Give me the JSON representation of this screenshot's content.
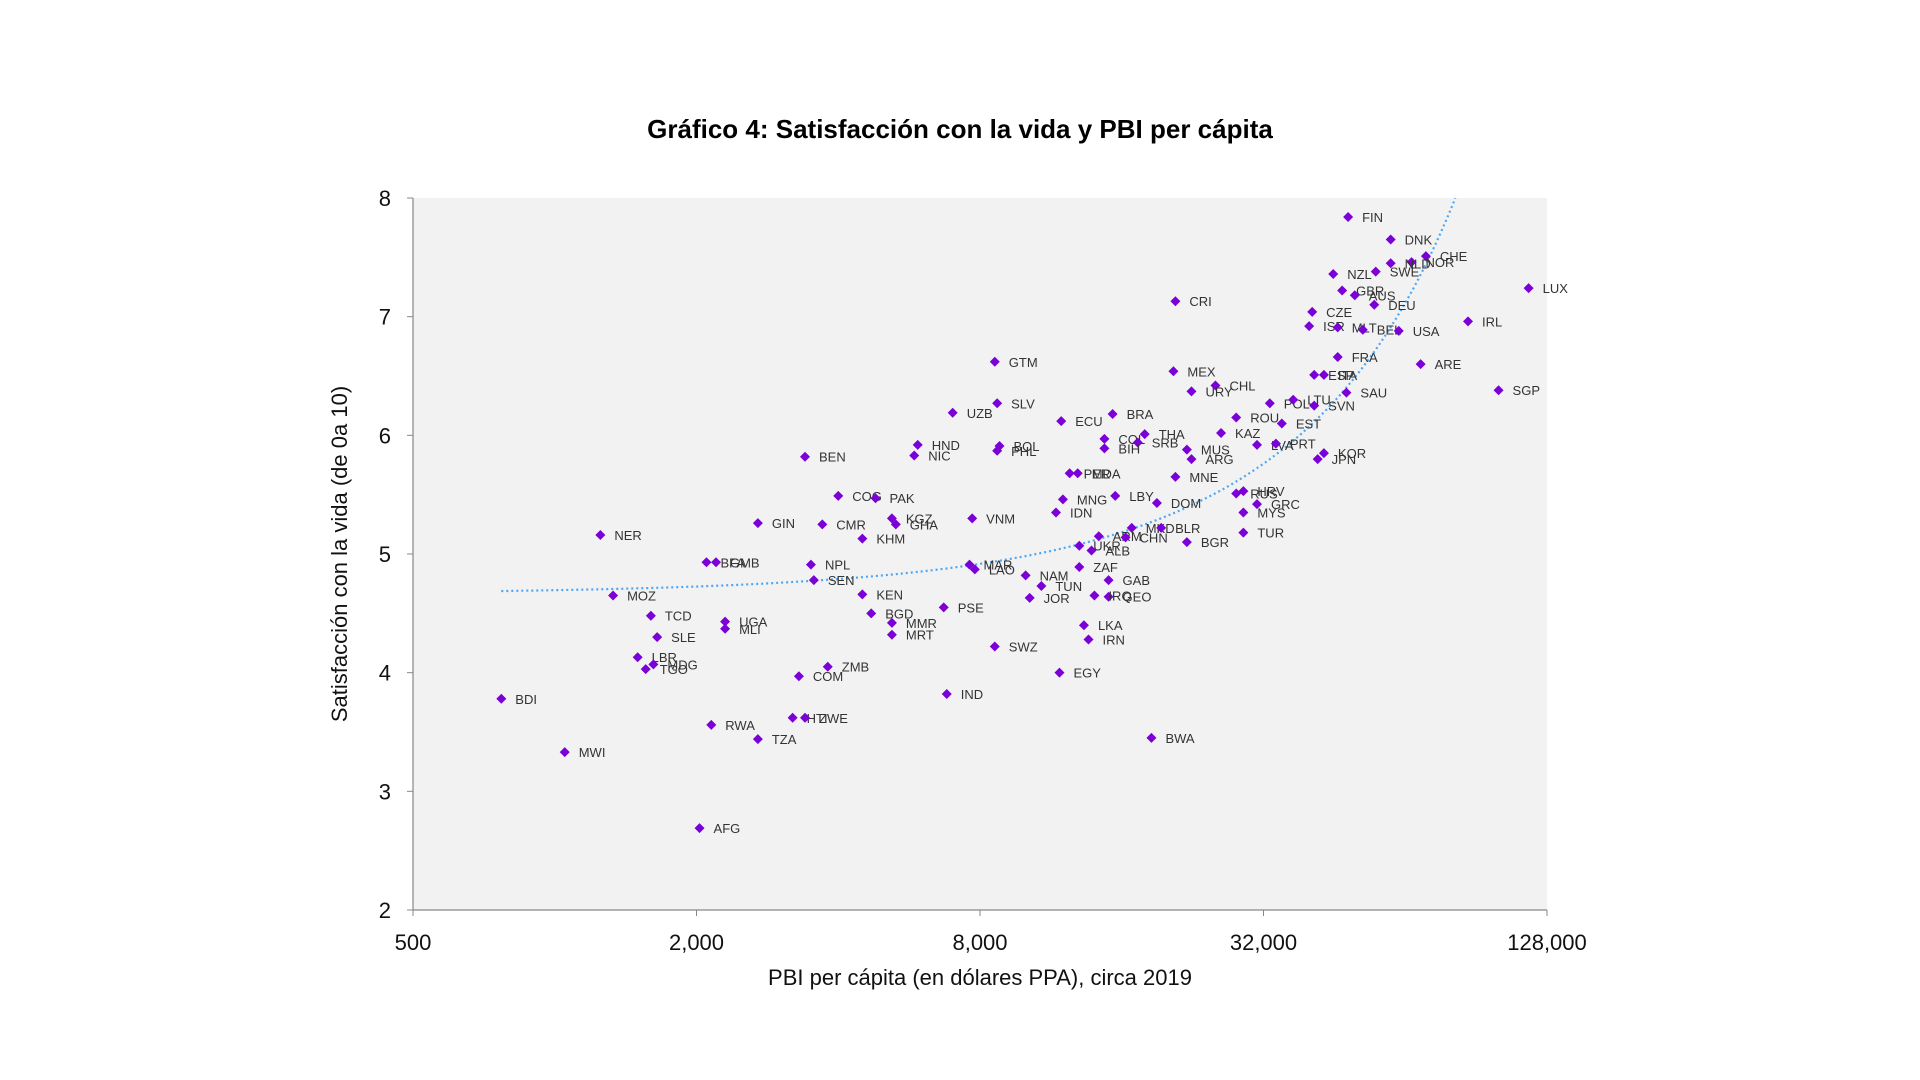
{
  "chart_data": {
    "type": "scatter",
    "title": "Gráfico 4: Satisfacción con la vida y PBI per cápita",
    "xlabel": "PBI per cápita (en dólares PPA), circa 2019",
    "ylabel": "Satisfacción con la vida (de 0a 10)",
    "x_scale": "log2",
    "xlim": [
      500,
      128000
    ],
    "ylim": [
      2,
      8
    ],
    "x_ticks": [
      500,
      2000,
      8000,
      32000,
      128000
    ],
    "x_tick_labels": [
      "500",
      "2,000",
      "8,000",
      "32,000",
      "128,000"
    ],
    "y_ticks": [
      2,
      3,
      4,
      5,
      6,
      7,
      8
    ],
    "y_tick_labels": [
      "2",
      "3",
      "4",
      "5",
      "6",
      "7",
      "8"
    ],
    "grid": false,
    "colors": {
      "points": "#7B00D8",
      "trend": "#4DA6F5",
      "plot_bg": "#F2F2F2"
    },
    "trendline": {
      "type": "exponential",
      "style": "dotted"
    },
    "series": [
      {
        "points": [
          {
            "label": "FIN",
            "x": 48400,
            "y": 7.84
          },
          {
            "label": "DNK",
            "x": 59600,
            "y": 7.65
          },
          {
            "label": "CHE",
            "x": 70800,
            "y": 7.51
          },
          {
            "label": "NOR",
            "x": 66000,
            "y": 7.46
          },
          {
            "label": "NLD",
            "x": 59600,
            "y": 7.45
          },
          {
            "label": "SWE",
            "x": 55400,
            "y": 7.38
          },
          {
            "label": "NZL",
            "x": 45000,
            "y": 7.36
          },
          {
            "label": "GBR",
            "x": 47000,
            "y": 7.22
          },
          {
            "label": "AUS",
            "x": 50000,
            "y": 7.18
          },
          {
            "label": "DEU",
            "x": 55000,
            "y": 7.1
          },
          {
            "label": "LUX",
            "x": 117000,
            "y": 7.24
          },
          {
            "label": "CRI",
            "x": 20800,
            "y": 7.13
          },
          {
            "label": "CZE",
            "x": 40600,
            "y": 7.04
          },
          {
            "label": "ISR",
            "x": 40000,
            "y": 6.92
          },
          {
            "label": "MLT",
            "x": 46000,
            "y": 6.91
          },
          {
            "label": "BEL",
            "x": 52000,
            "y": 6.89
          },
          {
            "label": "USA",
            "x": 62000,
            "y": 6.88
          },
          {
            "label": "IRL",
            "x": 87000,
            "y": 6.96
          },
          {
            "label": "GTM",
            "x": 8600,
            "y": 6.62
          },
          {
            "label": "FRA",
            "x": 46000,
            "y": 6.66
          },
          {
            "label": "ARE",
            "x": 69000,
            "y": 6.6
          },
          {
            "label": "ESP",
            "x": 41000,
            "y": 6.51
          },
          {
            "label": "ITA",
            "x": 43000,
            "y": 6.51
          },
          {
            "label": "MEX",
            "x": 20600,
            "y": 6.54
          },
          {
            "label": "CHL",
            "x": 25300,
            "y": 6.42
          },
          {
            "label": "URY",
            "x": 22500,
            "y": 6.37
          },
          {
            "label": "SAU",
            "x": 48000,
            "y": 6.36
          },
          {
            "label": "SGP",
            "x": 101000,
            "y": 6.38
          },
          {
            "label": "SLV",
            "x": 8700,
            "y": 6.27
          },
          {
            "label": "UZB",
            "x": 7000,
            "y": 6.19
          },
          {
            "label": "ECU",
            "x": 11900,
            "y": 6.12
          },
          {
            "label": "BRA",
            "x": 15300,
            "y": 6.18
          },
          {
            "label": "POL",
            "x": 33000,
            "y": 6.27
          },
          {
            "label": "LTU",
            "x": 37000,
            "y": 6.3
          },
          {
            "label": "SVN",
            "x": 41000,
            "y": 6.25
          },
          {
            "label": "ROU",
            "x": 28000,
            "y": 6.15
          },
          {
            "label": "EST",
            "x": 35000,
            "y": 6.1
          },
          {
            "label": "HND",
            "x": 5900,
            "y": 5.92
          },
          {
            "label": "BOL",
            "x": 8800,
            "y": 5.91
          },
          {
            "label": "PHL",
            "x": 8700,
            "y": 5.87
          },
          {
            "label": "NIC",
            "x": 5800,
            "y": 5.83
          },
          {
            "label": "COL",
            "x": 14700,
            "y": 5.97
          },
          {
            "label": "THA",
            "x": 17900,
            "y": 6.01
          },
          {
            "label": "SRB",
            "x": 17300,
            "y": 5.94
          },
          {
            "label": "BIH",
            "x": 14700,
            "y": 5.89
          },
          {
            "label": "KAZ",
            "x": 26000,
            "y": 6.02
          },
          {
            "label": "MUS",
            "x": 22000,
            "y": 5.88
          },
          {
            "label": "LVA",
            "x": 31000,
            "y": 5.92
          },
          {
            "label": "PRT",
            "x": 34000,
            "y": 5.93
          },
          {
            "label": "ARG",
            "x": 22500,
            "y": 5.8
          },
          {
            "label": "KOR",
            "x": 43000,
            "y": 5.85
          },
          {
            "label": "JPN",
            "x": 41700,
            "y": 5.8
          },
          {
            "label": "BEN",
            "x": 3400,
            "y": 5.82
          },
          {
            "label": "MDA",
            "x": 12900,
            "y": 5.68
          },
          {
            "label": "PER",
            "x": 12400,
            "y": 5.68
          },
          {
            "label": "MNE",
            "x": 20800,
            "y": 5.65
          },
          {
            "label": "COG",
            "x": 4000,
            "y": 5.49
          },
          {
            "label": "PAK",
            "x": 4800,
            "y": 5.47
          },
          {
            "label": "MNG",
            "x": 12000,
            "y": 5.46
          },
          {
            "label": "LBY",
            "x": 15500,
            "y": 5.49
          },
          {
            "label": "DOM",
            "x": 19000,
            "y": 5.43
          },
          {
            "label": "RUS",
            "x": 28000,
            "y": 5.51
          },
          {
            "label": "HRV",
            "x": 29000,
            "y": 5.53
          },
          {
            "label": "GRC",
            "x": 31000,
            "y": 5.42
          },
          {
            "label": "MYS",
            "x": 29000,
            "y": 5.35
          },
          {
            "label": "IDN",
            "x": 11600,
            "y": 5.35
          },
          {
            "label": "GIN",
            "x": 2700,
            "y": 5.26
          },
          {
            "label": "CMR",
            "x": 3700,
            "y": 5.25
          },
          {
            "label": "KGZ",
            "x": 5200,
            "y": 5.3
          },
          {
            "label": "GHA",
            "x": 5300,
            "y": 5.25
          },
          {
            "label": "VNM",
            "x": 7700,
            "y": 5.3
          },
          {
            "label": "MKD",
            "x": 16800,
            "y": 5.22
          },
          {
            "label": "BLR",
            "x": 19400,
            "y": 5.22
          },
          {
            "label": "KHM",
            "x": 4500,
            "y": 5.13
          },
          {
            "label": "NER",
            "x": 1250,
            "y": 5.16
          },
          {
            "label": "ARM",
            "x": 14300,
            "y": 5.15
          },
          {
            "label": "CHN",
            "x": 16300,
            "y": 5.14
          },
          {
            "label": "BGR",
            "x": 22000,
            "y": 5.1
          },
          {
            "label": "TUR",
            "x": 29000,
            "y": 5.18
          },
          {
            "label": "UKR",
            "x": 13000,
            "y": 5.07
          },
          {
            "label": "ALB",
            "x": 13800,
            "y": 5.03
          },
          {
            "label": "BFA",
            "x": 2100,
            "y": 4.93
          },
          {
            "label": "GMB",
            "x": 2200,
            "y": 4.93
          },
          {
            "label": "NPL",
            "x": 3500,
            "y": 4.91
          },
          {
            "label": "MAR",
            "x": 7600,
            "y": 4.91
          },
          {
            "label": "LAO",
            "x": 7800,
            "y": 4.87
          },
          {
            "label": "ZAF",
            "x": 13000,
            "y": 4.89
          },
          {
            "label": "SEN",
            "x": 3550,
            "y": 4.78
          },
          {
            "label": "NAM",
            "x": 10000,
            "y": 4.82
          },
          {
            "label": "GAB",
            "x": 15000,
            "y": 4.78
          },
          {
            "label": "TUN",
            "x": 10800,
            "y": 4.73
          },
          {
            "label": "MOZ",
            "x": 1330,
            "y": 4.65
          },
          {
            "label": "KEN",
            "x": 4500,
            "y": 4.66
          },
          {
            "label": "JOR",
            "x": 10200,
            "y": 4.63
          },
          {
            "label": "UGA",
            "x": 2300,
            "y": 4.43
          },
          {
            "label": "GEO",
            "x": 15000,
            "y": 4.64
          },
          {
            "label": "IRQ",
            "x": 14000,
            "y": 4.65
          },
          {
            "label": "PSE",
            "x": 6700,
            "y": 4.55
          },
          {
            "label": "TCD",
            "x": 1600,
            "y": 4.48
          },
          {
            "label": "BGD",
            "x": 4700,
            "y": 4.5
          },
          {
            "label": "MLI",
            "x": 2300,
            "y": 4.37
          },
          {
            "label": "MMR",
            "x": 5200,
            "y": 4.42
          },
          {
            "label": "MRT",
            "x": 5200,
            "y": 4.32
          },
          {
            "label": "LKA",
            "x": 13300,
            "y": 4.4
          },
          {
            "label": "SLE",
            "x": 1650,
            "y": 4.3
          },
          {
            "label": "IRN",
            "x": 13600,
            "y": 4.28
          },
          {
            "label": "SWZ",
            "x": 8600,
            "y": 4.22
          },
          {
            "label": "LBR",
            "x": 1500,
            "y": 4.13
          },
          {
            "label": "MDG",
            "x": 1620,
            "y": 4.07
          },
          {
            "label": "TGO",
            "x": 1560,
            "y": 4.03
          },
          {
            "label": "ZMB",
            "x": 3800,
            "y": 4.05
          },
          {
            "label": "COM",
            "x": 3300,
            "y": 3.97
          },
          {
            "label": "EGY",
            "x": 11800,
            "y": 4.0
          },
          {
            "label": "IND",
            "x": 6800,
            "y": 3.82
          },
          {
            "label": "BDI",
            "x": 770,
            "y": 3.78
          },
          {
            "label": "RWA",
            "x": 2150,
            "y": 3.56
          },
          {
            "label": "HTI",
            "x": 3200,
            "y": 3.62
          },
          {
            "label": "ZWE",
            "x": 3400,
            "y": 3.62
          },
          {
            "label": "TZA",
            "x": 2700,
            "y": 3.44
          },
          {
            "label": "BWA",
            "x": 18500,
            "y": 3.45
          },
          {
            "label": "MWI",
            "x": 1050,
            "y": 3.33
          },
          {
            "label": "AFG",
            "x": 2030,
            "y": 2.69
          }
        ]
      }
    ]
  }
}
